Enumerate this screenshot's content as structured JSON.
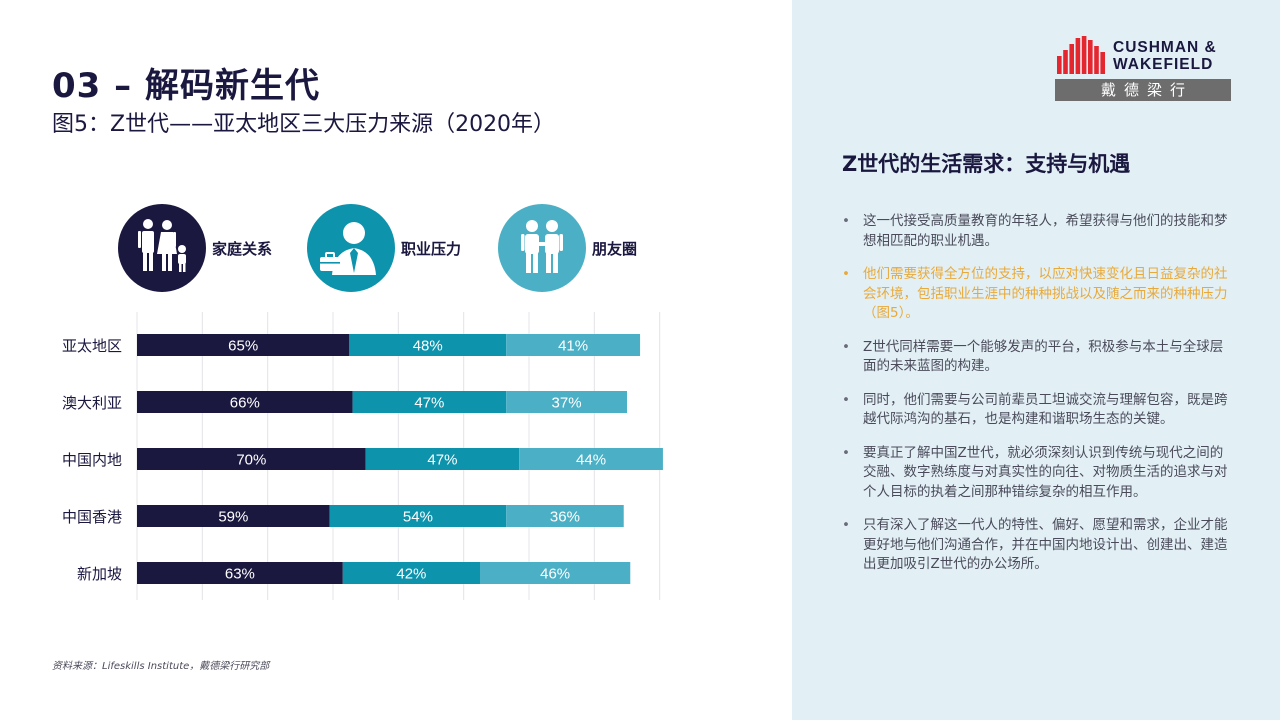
{
  "header": {
    "section_title": "03 – 解码新生代",
    "figure_title": "图5：Z世代——亚太地区三大压力来源（2020年）"
  },
  "legend_icons": [
    {
      "label": "家庭关系",
      "icon": "family-icon",
      "color": "#1b1840"
    },
    {
      "label": "职业压力",
      "icon": "businessman-icon",
      "color": "#0e93ad"
    },
    {
      "label": "朋友圈",
      "icon": "friends-icon",
      "color": "#4bb0c6"
    }
  ],
  "chart_data": {
    "type": "bar",
    "orientation": "horizontal",
    "stacked": true,
    "categories": [
      "亚太地区",
      "澳大利亚",
      "中国内地",
      "中国香港",
      "新加坡"
    ],
    "series": [
      {
        "name": "家庭关系",
        "values": [
          65,
          66,
          70,
          59,
          63
        ],
        "color": "#1b1840"
      },
      {
        "name": "职业压力",
        "values": [
          48,
          47,
          47,
          54,
          42
        ],
        "color": "#0e93ad"
      },
      {
        "name": "朋友圈",
        "values": [
          41,
          37,
          44,
          36,
          46
        ],
        "color": "#4bb0c6"
      }
    ],
    "value_suffix": "%",
    "xlim": [
      0,
      180
    ],
    "grid": true,
    "legend": "top"
  },
  "source": "资料来源：Lifeskills Institute，戴德梁行研究部",
  "logo": {
    "line1": "CUSHMAN &",
    "line2": "WAKEFIELD",
    "cn": "戴德梁行",
    "accent": "#e4262f"
  },
  "panel": {
    "title": "Z世代的生活需求：支持与机遇",
    "bullets": [
      {
        "text": "这一代接受高质量教育的年轻人，希望获得与他们的技能和梦想相匹配的职业机遇。",
        "highlight": false
      },
      {
        "text": "他们需要获得全方位的支持，以应对快速变化且日益复杂的社会环境，包括职业生涯中的种种挑战以及随之而来的种种压力（图5）。",
        "highlight": true
      },
      {
        "text": "Z世代同样需要一个能够发声的平台，积极参与本土与全球层面的未来蓝图的构建。",
        "highlight": false
      },
      {
        "text": "同时，他们需要与公司前辈员工坦诚交流与理解包容，既是跨越代际鸿沟的基石，也是构建和谐职场生态的关键。",
        "highlight": false
      },
      {
        "text": "要真正了解中国Z世代，就必须深刻认识到传统与现代之间的交融、数字熟练度与对真实性的向往、对物质生活的追求与对个人目标的执着之间那种错综复杂的相互作用。",
        "highlight": false
      },
      {
        "text": "只有深入了解这一代人的特性、偏好、愿望和需求，企业才能更好地与他们沟通合作，并在中国内地设计出、创建出、建造出更加吸引Z世代的办公场所。",
        "highlight": false
      }
    ]
  }
}
